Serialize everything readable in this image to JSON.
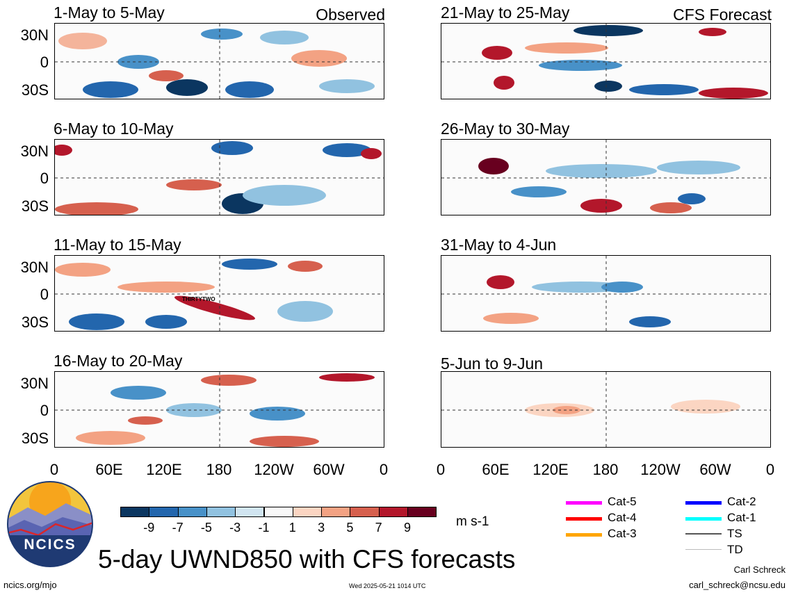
{
  "panels_left": [
    {
      "title": "1-May to 5-May",
      "corner": "Observed"
    },
    {
      "title": "6-May to 10-May",
      "corner": ""
    },
    {
      "title": "11-May to 15-May",
      "corner": "",
      "storm_label": "THIRTYTWO"
    },
    {
      "title": "16-May to 20-May",
      "corner": ""
    }
  ],
  "panels_right": [
    {
      "title": "21-May to 25-May",
      "corner": "CFS Forecast"
    },
    {
      "title": "26-May to 30-May",
      "corner": ""
    },
    {
      "title": "31-May to 4-Jun",
      "corner": ""
    },
    {
      "title": "5-Jun to 9-Jun",
      "corner": ""
    }
  ],
  "y_axis_labels": [
    "30N",
    "0",
    "30S"
  ],
  "x_axis_labels": [
    "0",
    "60E",
    "120E",
    "180",
    "120W",
    "60W",
    "0"
  ],
  "colorbar": {
    "colors": [
      "#0b3660",
      "#2366ad",
      "#4891c8",
      "#91c2e0",
      "#d1e5f1",
      "#f8f8f8",
      "#fbd5c2",
      "#f3a283",
      "#d6604e",
      "#b3172b",
      "#68001f"
    ],
    "ticks": [
      "-9",
      "-7",
      "-5",
      "-3",
      "-1",
      "1",
      "3",
      "5",
      "7",
      "9"
    ],
    "units": "m s-1"
  },
  "storm_legend": [
    {
      "label": "Cat-5",
      "color": "#ff00ff"
    },
    {
      "label": "Cat-4",
      "color": "#ff0000"
    },
    {
      "label": "Cat-3",
      "color": "#ffa500"
    },
    {
      "label": "Cat-2",
      "color": "#0000ff"
    },
    {
      "label": "Cat-1",
      "color": "#00ffff"
    },
    {
      "label": "TS",
      "color": "#555555"
    },
    {
      "label": "TD",
      "color": "#bbbbbb"
    }
  ],
  "logo": {
    "text": "NCICS"
  },
  "main_title": "5-day UWND850 with CFS forecasts",
  "footer": {
    "url": "ncics.org/mjo",
    "timestamp": "Wed 2025-05-21 1014 UTC",
    "author": "Carl Schreck",
    "email": "carl_schreck@ncsu.edu"
  }
}
